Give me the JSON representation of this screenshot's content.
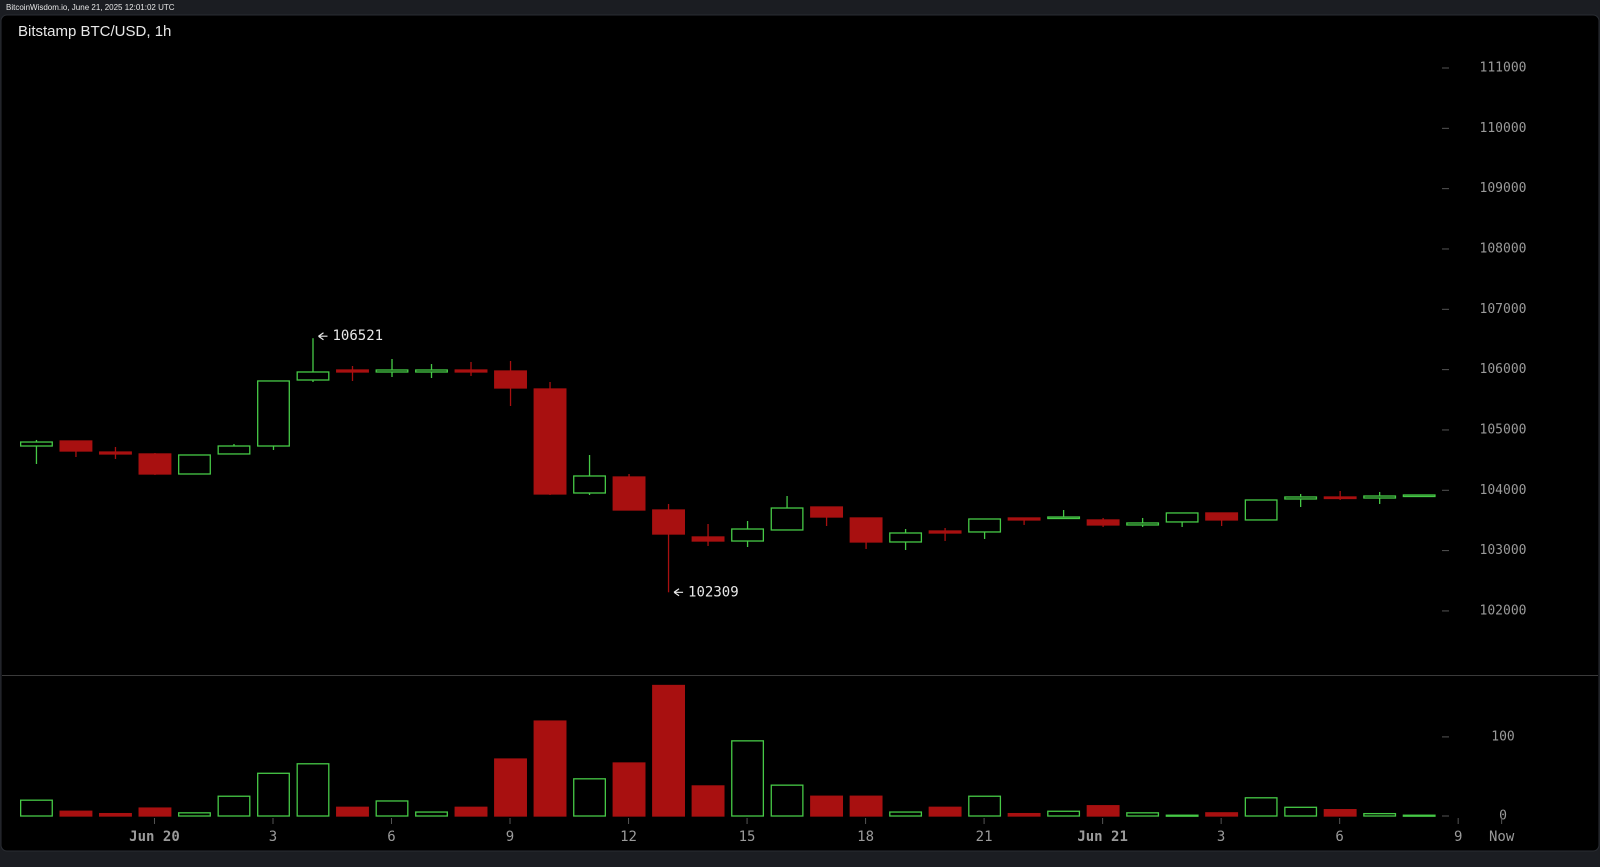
{
  "chart_data": {
    "type": "candlestick",
    "source": "BitcoinWisdom.io, June 21, 2025 12:01:02 UTC",
    "title": "Bitstamp BTC/USD, 1h",
    "up_color": "#46c946",
    "down_color": "#a81010",
    "annotate_extremes": true,
    "open": [
      104734,
      104817,
      104634,
      104602,
      104270,
      104602,
      104734,
      105828,
      105994,
      105961,
      105961,
      105994,
      105977,
      105679,
      103955,
      104220,
      103673,
      103226,
      103159,
      103342,
      103723,
      103541,
      103143,
      103325,
      103309,
      103541,
      103541,
      103508,
      103425,
      103475,
      103624,
      103508,
      103856,
      103889,
      103872,
      103905
    ],
    "high": [
      104834,
      104817,
      104718,
      104618,
      104585,
      104767,
      105812,
      106521,
      106060,
      106176,
      106093,
      106127,
      106143,
      105795,
      104585,
      104270,
      103773,
      103441,
      103491,
      103905,
      103723,
      103541,
      103358,
      103375,
      103524,
      103541,
      103673,
      103541,
      103541,
      103624,
      103624,
      103839,
      103939,
      103988,
      103972,
      103922
    ],
    "low": [
      104436,
      104552,
      104519,
      104254,
      104270,
      104602,
      104668,
      105795,
      105812,
      105878,
      105861,
      105895,
      105397,
      103922,
      103922,
      103673,
      102309,
      103077,
      103060,
      103342,
      103408,
      103027,
      103010,
      103160,
      103193,
      103425,
      103541,
      103392,
      103392,
      103392,
      103408,
      103508,
      103723,
      103839,
      103773,
      103905
    ],
    "close": [
      104800,
      104651,
      104602,
      104270,
      104585,
      104734,
      105812,
      105961,
      105961,
      105994,
      105994,
      105961,
      105696,
      103939,
      104237,
      103673,
      103275,
      103159,
      103358,
      103706,
      103557,
      103143,
      103292,
      103292,
      103524,
      103508,
      103557,
      103425,
      103458,
      103624,
      103508,
      103839,
      103889,
      103872,
      103905,
      103922
    ],
    "volume": [
      20,
      6,
      3,
      10,
      4,
      25,
      54,
      66,
      11,
      19,
      5,
      11,
      72,
      120,
      47,
      67,
      165,
      38,
      95,
      39,
      25,
      25,
      5,
      11,
      25,
      3,
      6,
      13,
      4,
      1,
      4,
      23,
      11,
      8,
      3,
      1
    ],
    "xlim": [
      -0.91,
      38.78
    ],
    "xticks": [
      {
        "value": 3,
        "label": "Jun 20"
      },
      {
        "value": 6,
        "label": "3"
      },
      {
        "value": 9,
        "label": "6"
      },
      {
        "value": 12,
        "label": "9"
      },
      {
        "value": 15,
        "label": "12"
      },
      {
        "value": 18,
        "label": "15"
      },
      {
        "value": 21,
        "label": "18"
      },
      {
        "value": 24,
        "label": "21"
      },
      {
        "value": 27,
        "label": "Jun 21"
      },
      {
        "value": 30,
        "label": "3"
      },
      {
        "value": 33,
        "label": "6"
      },
      {
        "value": 36,
        "label": "9"
      },
      {
        "value": 37.1,
        "label": "Now"
      }
    ],
    "ylim": [
      100938,
      111862
    ],
    "yticks": [
      102000,
      103000,
      104000,
      105000,
      106000,
      107000,
      108000,
      109000,
      110000,
      111000
    ],
    "volume_ylim": [
      0,
      177
    ],
    "volume_yticks": [
      0,
      100
    ]
  }
}
